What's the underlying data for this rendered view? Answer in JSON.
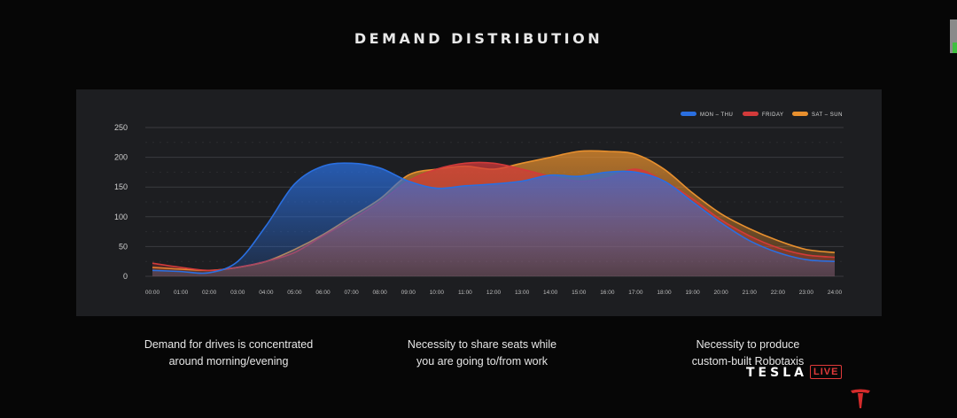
{
  "slide": {
    "title": "DEMAND DISTRIBUTION",
    "captions": [
      {
        "line1": "Demand for drives is concentrated",
        "line2": "around morning/evening"
      },
      {
        "line1": "Necessity to share seats while",
        "line2": "you are going to/from work"
      },
      {
        "line1": "Necessity to produce",
        "line2": "custom-built Robotaxis"
      }
    ],
    "brand": "TESLA",
    "live_badge": "LIVE"
  },
  "chart_data": {
    "type": "area",
    "title": "",
    "xlabel": "",
    "ylabel": "",
    "ylim": [
      0,
      250
    ],
    "yticks": [
      0,
      50,
      100,
      150,
      200,
      250
    ],
    "x": [
      "00:00",
      "01:00",
      "02:00",
      "03:00",
      "04:00",
      "05:00",
      "06:00",
      "07:00",
      "08:00",
      "09:00",
      "10:00",
      "11:00",
      "12:00",
      "13:00",
      "14:00",
      "15:00",
      "16:00",
      "17:00",
      "18:00",
      "19:00",
      "20:00",
      "21:00",
      "22:00",
      "23:00",
      "24:00"
    ],
    "legend_position": "top-right",
    "grid": true,
    "series": [
      {
        "name": "SAT – SUN",
        "color": "#e8902e",
        "values": [
          15,
          12,
          10,
          15,
          25,
          45,
          70,
          100,
          130,
          170,
          180,
          185,
          180,
          190,
          200,
          210,
          210,
          205,
          180,
          140,
          105,
          80,
          60,
          45,
          40
        ]
      },
      {
        "name": "FRIDAY",
        "color": "#d33a3a",
        "values": [
          22,
          15,
          10,
          15,
          25,
          40,
          68,
          95,
          125,
          160,
          180,
          190,
          190,
          180,
          168,
          160,
          165,
          180,
          160,
          130,
          95,
          68,
          48,
          36,
          32
        ]
      },
      {
        "name": "MON – THU",
        "color": "#2a6fe0",
        "values": [
          10,
          8,
          6,
          25,
          85,
          155,
          185,
          190,
          182,
          160,
          148,
          152,
          155,
          160,
          170,
          168,
          175,
          175,
          160,
          125,
          90,
          60,
          40,
          28,
          25
        ]
      }
    ]
  }
}
